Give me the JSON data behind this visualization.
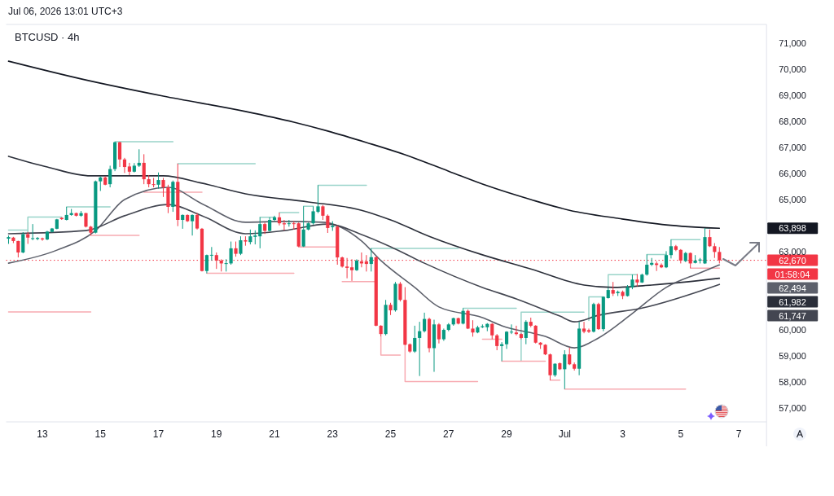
{
  "chart_data": {
    "type": "candlestick",
    "title": "BTCUSD · 4h",
    "subtitle": "Jul 06, 2026 13:01 UTC+3",
    "xlim": [
      "2026-06-11T21:00",
      "2026-07-08T02:00"
    ],
    "ylim": [
      56470,
      71720
    ],
    "xticks": [
      {
        "value": "2026-06-13T03:00",
        "label": "13"
      },
      {
        "value": "2026-06-15T03:00",
        "label": "15"
      },
      {
        "value": "2026-06-17T03:00",
        "label": "17"
      },
      {
        "value": "2026-06-19T03:00",
        "label": "19"
      },
      {
        "value": "2026-06-21T03:00",
        "label": "21"
      },
      {
        "value": "2026-06-23T03:00",
        "label": "23"
      },
      {
        "value": "2026-06-25T03:00",
        "label": "25"
      },
      {
        "value": "2026-06-27T03:00",
        "label": "27"
      },
      {
        "value": "2026-06-29T03:00",
        "label": "29"
      },
      {
        "value": "2026-07-01T03:00",
        "label": "Jul"
      },
      {
        "value": "2026-07-03T03:00",
        "label": "3"
      },
      {
        "value": "2026-07-05T03:00",
        "label": "5"
      },
      {
        "value": "2026-07-07T03:00",
        "label": "7"
      }
    ],
    "yticks": [
      {
        "value": 57000,
        "label": "57,000"
      },
      {
        "value": 58000,
        "label": "58,000"
      },
      {
        "value": 59000,
        "label": "59,000"
      },
      {
        "value": 60000,
        "label": "60,000"
      },
      {
        "value": 63000,
        "label": "63,000"
      },
      {
        "value": 65000,
        "label": "65,000"
      },
      {
        "value": 66000,
        "label": "66,000"
      },
      {
        "value": 67000,
        "label": "67,000"
      },
      {
        "value": 68000,
        "label": "68,000"
      },
      {
        "value": 69000,
        "label": "69,000"
      },
      {
        "value": 70000,
        "label": "70,000"
      },
      {
        "value": 71000,
        "label": "71,000"
      }
    ],
    "x": [
      "2026-06-11T23:00",
      "2026-06-12T03:00",
      "2026-06-12T07:00",
      "2026-06-12T11:00",
      "2026-06-12T15:00",
      "2026-06-12T19:00",
      "2026-06-12T23:00",
      "2026-06-13T03:00",
      "2026-06-13T07:00",
      "2026-06-13T11:00",
      "2026-06-13T15:00",
      "2026-06-13T19:00",
      "2026-06-13T23:00",
      "2026-06-14T03:00",
      "2026-06-14T07:00",
      "2026-06-14T11:00",
      "2026-06-14T15:00",
      "2026-06-14T19:00",
      "2026-06-14T23:00",
      "2026-06-15T03:00",
      "2026-06-15T07:00",
      "2026-06-15T11:00",
      "2026-06-15T15:00",
      "2026-06-15T19:00",
      "2026-06-15T23:00",
      "2026-06-16T03:00",
      "2026-06-16T07:00",
      "2026-06-16T11:00",
      "2026-06-16T15:00",
      "2026-06-16T19:00",
      "2026-06-16T23:00",
      "2026-06-17T03:00",
      "2026-06-17T07:00",
      "2026-06-17T11:00",
      "2026-06-17T15:00",
      "2026-06-17T19:00",
      "2026-06-17T23:00",
      "2026-06-18T03:00",
      "2026-06-18T07:00",
      "2026-06-18T11:00",
      "2026-06-18T15:00",
      "2026-06-18T19:00",
      "2026-06-18T23:00",
      "2026-06-19T03:00",
      "2026-06-19T07:00",
      "2026-06-19T11:00",
      "2026-06-19T15:00",
      "2026-06-19T19:00",
      "2026-06-19T23:00",
      "2026-06-20T03:00",
      "2026-06-20T07:00",
      "2026-06-20T11:00",
      "2026-06-20T15:00",
      "2026-06-20T19:00",
      "2026-06-20T23:00",
      "2026-06-21T03:00",
      "2026-06-21T07:00",
      "2026-06-21T11:00",
      "2026-06-21T15:00",
      "2026-06-21T19:00",
      "2026-06-21T23:00",
      "2026-06-22T03:00",
      "2026-06-22T07:00",
      "2026-06-22T11:00",
      "2026-06-22T15:00",
      "2026-06-22T19:00",
      "2026-06-22T23:00",
      "2026-06-23T03:00",
      "2026-06-23T07:00",
      "2026-06-23T11:00",
      "2026-06-23T15:00",
      "2026-06-23T19:00",
      "2026-06-23T23:00",
      "2026-06-24T03:00",
      "2026-06-24T07:00",
      "2026-06-24T11:00",
      "2026-06-24T15:00",
      "2026-06-24T19:00",
      "2026-06-24T23:00",
      "2026-06-25T03:00",
      "2026-06-25T07:00",
      "2026-06-25T11:00",
      "2026-06-25T15:00",
      "2026-06-25T19:00",
      "2026-06-25T23:00",
      "2026-06-26T03:00",
      "2026-06-26T07:00",
      "2026-06-26T11:00",
      "2026-06-26T15:00",
      "2026-06-26T19:00",
      "2026-06-26T23:00",
      "2026-06-27T03:00",
      "2026-06-27T07:00",
      "2026-06-27T11:00",
      "2026-06-27T15:00",
      "2026-06-27T19:00",
      "2026-06-27T23:00",
      "2026-06-28T03:00",
      "2026-06-28T07:00",
      "2026-06-28T11:00",
      "2026-06-28T15:00",
      "2026-06-28T19:00",
      "2026-06-28T23:00",
      "2026-06-29T03:00",
      "2026-06-29T07:00",
      "2026-06-29T11:00",
      "2026-06-29T15:00",
      "2026-06-29T19:00",
      "2026-06-29T23:00",
      "2026-06-30T03:00",
      "2026-06-30T07:00",
      "2026-06-30T11:00",
      "2026-06-30T15:00",
      "2026-06-30T19:00",
      "2026-06-30T23:00",
      "2026-07-01T03:00",
      "2026-07-01T07:00",
      "2026-07-01T11:00",
      "2026-07-01T15:00",
      "2026-07-01T19:00",
      "2026-07-01T23:00",
      "2026-07-02T03:00",
      "2026-07-02T07:00",
      "2026-07-02T11:00",
      "2026-07-02T15:00",
      "2026-07-02T19:00",
      "2026-07-02T23:00",
      "2026-07-03T03:00",
      "2026-07-03T07:00",
      "2026-07-03T11:00",
      "2026-07-03T15:00",
      "2026-07-03T19:00",
      "2026-07-03T23:00",
      "2026-07-04T03:00",
      "2026-07-04T07:00",
      "2026-07-04T11:00",
      "2026-07-04T15:00",
      "2026-07-04T19:00",
      "2026-07-04T23:00",
      "2026-07-05T03:00",
      "2026-07-05T07:00",
      "2026-07-05T11:00",
      "2026-07-05T15:00",
      "2026-07-05T19:00",
      "2026-07-05T23:00",
      "2026-07-06T03:00",
      "2026-07-06T07:00",
      "2026-07-06T11:00"
    ],
    "ohlc": [
      [
        63500,
        63620,
        63300,
        63560
      ],
      [
        63540,
        63570,
        63330,
        63410
      ],
      [
        63410,
        63420,
        62780,
        62970
      ],
      [
        62970,
        63750,
        62940,
        63670
      ],
      [
        63670,
        63750,
        63300,
        63540
      ],
      [
        63500,
        64060,
        63440,
        63520
      ],
      [
        63490,
        63560,
        63440,
        63530
      ],
      [
        63510,
        63540,
        63420,
        63470
      ],
      [
        63470,
        63800,
        63440,
        63770
      ],
      [
        63760,
        63910,
        63740,
        63890
      ],
      [
        63880,
        64260,
        63860,
        64240
      ],
      [
        64300,
        64320,
        64220,
        64250
      ],
      [
        64220,
        64720,
        64200,
        64410
      ],
      [
        64410,
        64640,
        64380,
        64480
      ],
      [
        64480,
        64500,
        64350,
        64380
      ],
      [
        64380,
        64560,
        64340,
        64480
      ],
      [
        64480,
        64490,
        63930,
        63960
      ],
      [
        63960,
        63990,
        63630,
        63730
      ],
      [
        63730,
        65730,
        63700,
        65700
      ],
      [
        65700,
        65890,
        65330,
        65850
      ],
      [
        65850,
        65890,
        65550,
        65570
      ],
      [
        65590,
        66300,
        65470,
        66170
      ],
      [
        66170,
        67220,
        66090,
        67200
      ],
      [
        67200,
        67220,
        66250,
        66540
      ],
      [
        66540,
        66600,
        66020,
        66250
      ],
      [
        66270,
        66410,
        65940,
        66070
      ],
      [
        66070,
        66400,
        66040,
        66300
      ],
      [
        66300,
        66930,
        66250,
        66410
      ],
      [
        66410,
        66740,
        65590,
        65780
      ],
      [
        65780,
        65940,
        65470,
        65590
      ],
      [
        65590,
        65830,
        65470,
        65560
      ],
      [
        65570,
        66040,
        65420,
        65750
      ],
      [
        65750,
        65830,
        65100,
        65470
      ],
      [
        65470,
        65570,
        64480,
        64720
      ],
      [
        64720,
        65730,
        64530,
        65680
      ],
      [
        65680,
        66380,
        63980,
        64220
      ],
      [
        64220,
        64430,
        63880,
        64410
      ],
      [
        64410,
        64430,
        64140,
        64170
      ],
      [
        64170,
        64430,
        63620,
        64410
      ],
      [
        64410,
        64480,
        63850,
        63890
      ],
      [
        63880,
        63910,
        62240,
        62260
      ],
      [
        62260,
        62890,
        62170,
        62870
      ],
      [
        62870,
        63180,
        62660,
        62880
      ],
      [
        62870,
        62970,
        62340,
        62660
      ],
      [
        62660,
        62710,
        62240,
        62550
      ],
      [
        62550,
        62710,
        62240,
        62560
      ],
      [
        62550,
        63390,
        62500,
        63130
      ],
      [
        63130,
        63390,
        62810,
        62920
      ],
      [
        62920,
        63590,
        62870,
        63440
      ],
      [
        63440,
        63590,
        63230,
        63390
      ],
      [
        63370,
        63850,
        63280,
        63590
      ],
      [
        63570,
        63820,
        63280,
        63620
      ],
      [
        63590,
        64320,
        63130,
        64060
      ],
      [
        64060,
        64120,
        63680,
        63800
      ],
      [
        63800,
        64320,
        63780,
        64220
      ],
      [
        64220,
        64380,
        64170,
        64320
      ],
      [
        64320,
        64500,
        64010,
        64090
      ],
      [
        64090,
        64220,
        63820,
        64050
      ],
      [
        64070,
        64220,
        63960,
        64090
      ],
      [
        64090,
        64170,
        63850,
        64070
      ],
      [
        64090,
        64120,
        63180,
        63200
      ],
      [
        63200,
        64740,
        63180,
        63850
      ],
      [
        63850,
        64120,
        63820,
        64090
      ],
      [
        64090,
        64740,
        64040,
        64550
      ],
      [
        64530,
        65550,
        64480,
        64740
      ],
      [
        64740,
        64790,
        64220,
        64380
      ],
      [
        64380,
        64430,
        63720,
        63910
      ],
      [
        63940,
        64170,
        63800,
        63990
      ],
      [
        63960,
        64010,
        62500,
        62780
      ],
      [
        62780,
        62810,
        62390,
        62430
      ],
      [
        62430,
        62760,
        61980,
        62380
      ],
      [
        62400,
        62710,
        61880,
        62290
      ],
      [
        62290,
        62710,
        62260,
        62660
      ],
      [
        62630,
        62970,
        62400,
        62550
      ],
      [
        62630,
        62870,
        62240,
        62530
      ],
      [
        62530,
        63130,
        62240,
        62790
      ],
      [
        62790,
        62810,
        60140,
        60160
      ],
      [
        60160,
        60180,
        59750,
        59840
      ],
      [
        59840,
        61150,
        59790,
        60960
      ],
      [
        60960,
        61040,
        60570,
        60750
      ],
      [
        60750,
        61840,
        60700,
        61770
      ],
      [
        61770,
        61840,
        61090,
        61150
      ],
      [
        61150,
        61640,
        59410,
        59430
      ],
      [
        59450,
        59480,
        59120,
        59170
      ],
      [
        59170,
        60160,
        59120,
        59690
      ],
      [
        59690,
        60310,
        58230,
        59950
      ],
      [
        59950,
        60660,
        59900,
        60420
      ],
      [
        60420,
        60470,
        59140,
        59300
      ],
      [
        59300,
        60390,
        58390,
        60210
      ],
      [
        60210,
        60260,
        59480,
        59640
      ],
      [
        59640,
        60050,
        59580,
        60000
      ],
      [
        60000,
        60260,
        59950,
        60210
      ],
      [
        60210,
        60470,
        60160,
        60450
      ],
      [
        60450,
        60470,
        60210,
        60240
      ],
      [
        60240,
        60830,
        60210,
        60730
      ],
      [
        60730,
        60780,
        60030,
        60050
      ],
      [
        60050,
        60370,
        59740,
        59900
      ],
      [
        59900,
        60160,
        59870,
        60100
      ],
      [
        60100,
        60210,
        60070,
        60140
      ],
      [
        60100,
        60260,
        59950,
        60230
      ],
      [
        60230,
        60260,
        59640,
        59790
      ],
      [
        59790,
        59840,
        59220,
        59380
      ],
      [
        59380,
        59530,
        58800,
        59450
      ],
      [
        59450,
        59950,
        59270,
        59930
      ],
      [
        59900,
        60210,
        59840,
        59930
      ],
      [
        59900,
        60160,
        59790,
        59840
      ],
      [
        59840,
        59870,
        59640,
        59690
      ],
      [
        59690,
        60370,
        59450,
        60310
      ],
      [
        60310,
        60470,
        60100,
        60160
      ],
      [
        60160,
        60180,
        59480,
        59510
      ],
      [
        59510,
        59530,
        59270,
        59430
      ],
      [
        59430,
        59450,
        59030,
        59060
      ],
      [
        59060,
        59090,
        58070,
        58260
      ],
      [
        58260,
        58720,
        58200,
        58700
      ],
      [
        58720,
        58750,
        58460,
        58490
      ],
      [
        58490,
        59220,
        57730,
        59060
      ],
      [
        59060,
        59320,
        58650,
        58680
      ],
      [
        58680,
        58750,
        58440,
        58510
      ],
      [
        58510,
        60310,
        58260,
        60050
      ],
      [
        60050,
        60310,
        59870,
        59930
      ],
      [
        59990,
        60050,
        59880,
        59930
      ],
      [
        59930,
        61040,
        59900,
        60990
      ],
      [
        60990,
        61040,
        60000,
        60030
      ],
      [
        60030,
        61280,
        59950,
        61270
      ],
      [
        61220,
        61620,
        61200,
        61530
      ],
      [
        61530,
        61840,
        61300,
        61390
      ],
      [
        61410,
        61510,
        61300,
        61460
      ],
      [
        61460,
        61510,
        61180,
        61300
      ],
      [
        61300,
        61720,
        61280,
        61640
      ],
      [
        61640,
        62120,
        61560,
        61930
      ],
      [
        61930,
        62140,
        61670,
        61820
      ],
      [
        61820,
        62160,
        61800,
        62120
      ],
      [
        62120,
        62890,
        62080,
        62500
      ],
      [
        62500,
        62760,
        62450,
        62570
      ],
      [
        62550,
        62630,
        62260,
        62490
      ],
      [
        62490,
        62550,
        62370,
        62400
      ],
      [
        62400,
        63020,
        62370,
        62870
      ],
      [
        62870,
        63460,
        62740,
        63210
      ],
      [
        63210,
        63260,
        63020,
        63070
      ],
      [
        63070,
        63100,
        62550,
        62660
      ],
      [
        62640,
        62990,
        62600,
        62950
      ],
      [
        62950,
        62970,
        62370,
        62550
      ],
      [
        62570,
        62870,
        62550,
        62660
      ],
      [
        62660,
        62760,
        62550,
        62700
      ],
      [
        62550,
        63900,
        62530,
        63560
      ],
      [
        63560,
        63850,
        63180,
        63210
      ],
      [
        63210,
        63330,
        62760,
        62990
      ],
      [
        62990,
        63180,
        62550,
        62670
      ]
    ],
    "colors": [
      "#089981",
      "#f23645",
      "#f23645",
      "#089981",
      "#f23645",
      "#089981",
      "#089981",
      "#f23645",
      "#089981",
      "#089981",
      "#089981",
      "#f23645",
      "#089981",
      "#089981",
      "#f23645",
      "#089981",
      "#f23645",
      "#f23645",
      "#089981",
      "#089981",
      "#f23645",
      "#089981",
      "#089981",
      "#f23645",
      "#f23645",
      "#f23645",
      "#089981",
      "#089981",
      "#f23645",
      "#f23645",
      "#f23645",
      "#089981",
      "#f23645",
      "#f23645",
      "#089981",
      "#f23645",
      "#089981",
      "#f23645",
      "#089981",
      "#f23645",
      "#f23645",
      "#089981",
      "#089981",
      "#f23645",
      "#f23645",
      "#089981",
      "#089981",
      "#f23645",
      "#089981",
      "#f23645",
      "#089981",
      "#089981",
      "#089981",
      "#f23645",
      "#089981",
      "#089981",
      "#f23645",
      "#f23645",
      "#089981",
      "#f23645",
      "#f23645",
      "#089981",
      "#089981",
      "#089981",
      "#089981",
      "#f23645",
      "#f23645",
      "#089981",
      "#f23645",
      "#f23645",
      "#f23645",
      "#f23645",
      "#089981",
      "#f23645",
      "#f23645",
      "#089981",
      "#f23645",
      "#f23645",
      "#089981",
      "#f23645",
      "#089981",
      "#f23645",
      "#f23645",
      "#f23645",
      "#089981",
      "#089981",
      "#089981",
      "#f23645",
      "#089981",
      "#f23645",
      "#089981",
      "#089981",
      "#089981",
      "#f23645",
      "#089981",
      "#f23645",
      "#f23645",
      "#089981",
      "#089981",
      "#089981",
      "#f23645",
      "#f23645",
      "#089981",
      "#089981",
      "#089981",
      "#f23645",
      "#f23645",
      "#089981",
      "#f23645",
      "#f23645",
      "#f23645",
      "#f23645",
      "#f23645",
      "#089981",
      "#f23645",
      "#089981",
      "#f23645",
      "#f23645",
      "#089981",
      "#f23645",
      "#f23645",
      "#089981",
      "#f23645",
      "#089981",
      "#089981",
      "#f23645",
      "#089981",
      "#f23645",
      "#089981",
      "#089981",
      "#f23645",
      "#089981",
      "#089981",
      "#089981",
      "#f23645",
      "#f23645",
      "#089981",
      "#089981",
      "#f23645",
      "#f23645",
      "#089981",
      "#f23645",
      "#089981",
      "#089981",
      "#089981",
      "#f23645",
      "#f23645",
      "#f23645"
    ],
    "series": [
      {
        "type": "line",
        "color": "#99d4c9",
        "x": [
          "2026-06-11T23:00",
          "2026-06-12T15:00"
        ],
        "values": [
          63830,
          63830
        ]
      },
      {
        "type": "line",
        "color": "#99d4c9",
        "x": [
          "2026-06-12T15:00",
          "2026-06-12T15:00",
          "2026-06-13T19:00"
        ],
        "values": [
          63750,
          64330,
          64330
        ]
      },
      {
        "type": "line",
        "color": "#99d4c9",
        "x": [
          "2026-06-13T23:00",
          "2026-06-15T11:00"
        ],
        "values": [
          64720,
          64720
        ]
      },
      {
        "type": "line",
        "color": "#99d4c9",
        "x": [
          "2026-06-15T15:00",
          "2026-06-17T15:00"
        ],
        "values": [
          67220,
          67220
        ]
      },
      {
        "type": "line",
        "color": "#99d4c9",
        "x": [
          "2026-06-17T19:00",
          "2026-06-20T11:00"
        ],
        "values": [
          66380,
          66380
        ]
      },
      {
        "type": "line",
        "color": "#99d4c9",
        "x": [
          "2026-06-20T15:00",
          "2026-06-21T03:00"
        ],
        "values": [
          64320,
          64320
        ]
      },
      {
        "type": "line",
        "color": "#99d4c9",
        "x": [
          "2026-06-21T07:00",
          "2026-06-21T23:00"
        ],
        "values": [
          64500,
          64500
        ]
      },
      {
        "type": "line",
        "color": "#99d4c9",
        "x": [
          "2026-06-22T03:00",
          "2026-06-22T11:00"
        ],
        "values": [
          64740,
          64740
        ]
      },
      {
        "type": "line",
        "color": "#99d4c9",
        "x": [
          "2026-06-22T15:00",
          "2026-06-24T07:00"
        ],
        "values": [
          65550,
          65550
        ]
      },
      {
        "type": "line",
        "color": "#99d4c9",
        "x": [
          "2026-06-24T11:00",
          "2026-06-27T11:00"
        ],
        "values": [
          63130,
          63130
        ]
      },
      {
        "type": "line",
        "color": "#99d4c9",
        "x": [
          "2026-06-27T15:00",
          "2026-06-29T11:00"
        ],
        "values": [
          60830,
          60830
        ]
      },
      {
        "type": "line",
        "color": "#99d4c9",
        "x": [
          "2026-06-29T15:00",
          "2026-06-29T15:00",
          "2026-07-01T19:00"
        ],
        "values": [
          58800,
          60680,
          60680
        ]
      },
      {
        "type": "line",
        "color": "#99d4c9",
        "x": [
          "2026-07-01T23:00",
          "2026-07-01T23:00",
          "2026-07-02T11:00"
        ],
        "values": [
          60360,
          61270,
          61270
        ]
      },
      {
        "type": "line",
        "color": "#99d4c9",
        "x": [
          "2026-07-02T15:00",
          "2026-07-02T15:00",
          "2026-07-03T15:00"
        ],
        "values": [
          61620,
          62120,
          62120
        ]
      },
      {
        "type": "line",
        "color": "#99d4c9",
        "x": [
          "2026-07-03T23:00",
          "2026-07-04T15:00"
        ],
        "values": [
          62890,
          62890
        ]
      },
      {
        "type": "line",
        "color": "#99d4c9",
        "x": [
          "2026-07-04T19:00",
          "2026-07-05T19:00"
        ],
        "values": [
          63460,
          63460
        ]
      },
      {
        "type": "line",
        "color": "#99d4c9",
        "x": [
          "2026-07-05T23:00",
          "2026-07-06T03:00"
        ],
        "values": [
          63900,
          63900
        ]
      },
      {
        "type": "line",
        "color": "#f8aab1",
        "x": [
          "2026-06-11T23:00",
          "2026-06-14T19:00"
        ],
        "values": [
          60690,
          60690
        ]
      },
      {
        "type": "line",
        "color": "#f8aab1",
        "x": [
          "2026-06-14T19:00",
          "2026-06-16T11:00"
        ],
        "values": [
          63630,
          63630
        ]
      },
      {
        "type": "line",
        "color": "#f8aab1",
        "x": [
          "2026-06-16T15:00",
          "2026-06-18T15:00"
        ],
        "values": [
          65280,
          65280
        ]
      },
      {
        "type": "line",
        "color": "#f8aab1",
        "x": [
          "2026-06-18T19:00",
          "2026-06-21T19:00"
        ],
        "values": [
          62170,
          62170
        ]
      },
      {
        "type": "line",
        "color": "#f8aab1",
        "x": [
          "2026-06-21T23:00",
          "2026-06-23T07:00"
        ],
        "values": [
          63180,
          63180
        ]
      },
      {
        "type": "line",
        "color": "#f8aab1",
        "x": [
          "2026-06-23T11:00",
          "2026-06-24T15:00"
        ],
        "values": [
          61850,
          61850
        ]
      },
      {
        "type": "line",
        "color": "#f8aab1",
        "x": [
          "2026-06-24T19:00",
          "2026-06-24T19:00",
          "2026-06-25T11:00"
        ],
        "values": [
          59750,
          59030,
          59030
        ]
      },
      {
        "type": "line",
        "color": "#f8aab1",
        "x": [
          "2026-06-25T15:00",
          "2026-06-25T15:00",
          "2026-06-28T03:00"
        ],
        "values": [
          59410,
          58020,
          58020
        ]
      },
      {
        "type": "line",
        "color": "#f8aab1",
        "x": [
          "2026-06-28T07:00",
          "2026-06-28T23:00"
        ],
        "values": [
          59640,
          59640
        ]
      },
      {
        "type": "line",
        "color": "#f8aab1",
        "x": [
          "2026-06-28T23:00",
          "2026-06-30T11:00"
        ],
        "values": [
          58800,
          58800
        ]
      },
      {
        "type": "line",
        "color": "#f8aab1",
        "x": [
          "2026-06-30T15:00",
          "2026-06-30T23:00"
        ],
        "values": [
          58070,
          58070
        ]
      },
      {
        "type": "line",
        "color": "#f8aab1",
        "x": [
          "2026-07-01T03:00",
          "2026-07-05T07:00"
        ],
        "values": [
          57730,
          57730
        ]
      },
      {
        "type": "line",
        "color": "#f8aab1",
        "x": [
          "2026-07-05T11:00",
          "2026-07-06T11:00"
        ],
        "values": [
          62370,
          62370
        ]
      },
      {
        "type": "line",
        "color": "#131722",
        "x": [
          "2026-06-11T23:00",
          "2026-06-14T11:00",
          "2026-06-17T07:00",
          "2026-06-20T03:00",
          "2026-06-21T19:00",
          "2026-06-22T23:00",
          "2026-06-24T07:00",
          "2026-06-25T15:00",
          "2026-06-27T03:00",
          "2026-06-28T11:00",
          "2026-06-29T23:00",
          "2026-07-01T07:00",
          "2026-07-02T23:00",
          "2026-07-04T15:00",
          "2026-07-06T11:00"
        ],
        "values": [
          70310,
          69630,
          68970,
          68380,
          67970,
          67630,
          67190,
          66720,
          66090,
          65530,
          65000,
          64590,
          64280,
          64030,
          63898
        ]
      },
      {
        "type": "line",
        "color": "#2a2e39",
        "x": [
          "2026-06-11T23:00",
          "2026-06-13T07:00",
          "2026-06-14T19:00",
          "2026-06-15T23:00",
          "2026-06-17T07:00",
          "2026-06-18T15:00",
          "2026-06-20T03:00",
          "2026-06-22T07:00",
          "2026-06-24T03:00",
          "2026-06-25T03:00",
          "2026-06-26T11:00",
          "2026-06-28T07:00",
          "2026-06-29T23:00",
          "2026-07-01T19:00",
          "2026-07-02T19:00",
          "2026-07-04T03:00",
          "2026-07-06T11:00"
        ],
        "values": [
          66660,
          66250,
          65910,
          65910,
          65910,
          65630,
          65220,
          64910,
          64590,
          64220,
          63590,
          62880,
          62340,
          61720,
          61630,
          61720,
          61982
        ]
      },
      {
        "type": "line",
        "color": "#5d606b",
        "x": [
          "2026-06-11T23:00",
          "2026-06-13T15:00",
          "2026-06-14T23:00",
          "2026-06-15T23:00",
          "2026-06-17T11:00",
          "2026-06-18T15:00",
          "2026-06-20T03:00",
          "2026-06-21T11:00",
          "2026-06-22T19:00",
          "2026-06-24T03:00",
          "2026-06-24T19:00",
          "2026-06-25T23:00",
          "2026-06-26T19:00",
          "2026-06-28T07:00",
          "2026-06-28T23:00",
          "2026-06-30T11:00",
          "2026-07-01T11:00",
          "2026-07-02T07:00",
          "2026-07-03T11:00",
          "2026-07-04T15:00",
          "2026-07-05T19:00",
          "2026-07-06T11:00"
        ],
        "values": [
          62560,
          63060,
          63810,
          65000,
          65470,
          64840,
          64130,
          64160,
          64130,
          63410,
          62660,
          61630,
          60880,
          60470,
          60160,
          59750,
          59310,
          59690,
          60630,
          61630,
          62190,
          62494
        ]
      },
      {
        "type": "line",
        "color": "#434651",
        "x": [
          "2026-06-11T23:00",
          "2026-06-14T15:00",
          "2026-06-15T23:00",
          "2026-06-17T11:00",
          "2026-06-18T15:00",
          "2026-06-20T03:00",
          "2026-06-21T11:00",
          "2026-06-22T23:00",
          "2026-06-24T03:00",
          "2026-06-25T03:00",
          "2026-06-26T07:00",
          "2026-06-28T07:00",
          "2026-06-29T11:00",
          "2026-06-30T23:00",
          "2026-07-01T11:00",
          "2026-07-02T07:00",
          "2026-07-03T19:00",
          "2026-07-06T11:00"
        ],
        "values": [
          63690,
          63810,
          64380,
          64810,
          64380,
          63690,
          63810,
          64060,
          63660,
          63190,
          62560,
          61630,
          61190,
          60530,
          60310,
          60560,
          60840,
          61747
        ]
      }
    ],
    "ref_lines": [
      {
        "axis": "y",
        "value": 62670,
        "label": "62,670",
        "color": "#f23645",
        "line_style": "dotted"
      }
    ],
    "annotations": [
      "63,898",
      "61,982",
      "62,494",
      "61,747",
      "01:58:04"
    ]
  }
}
